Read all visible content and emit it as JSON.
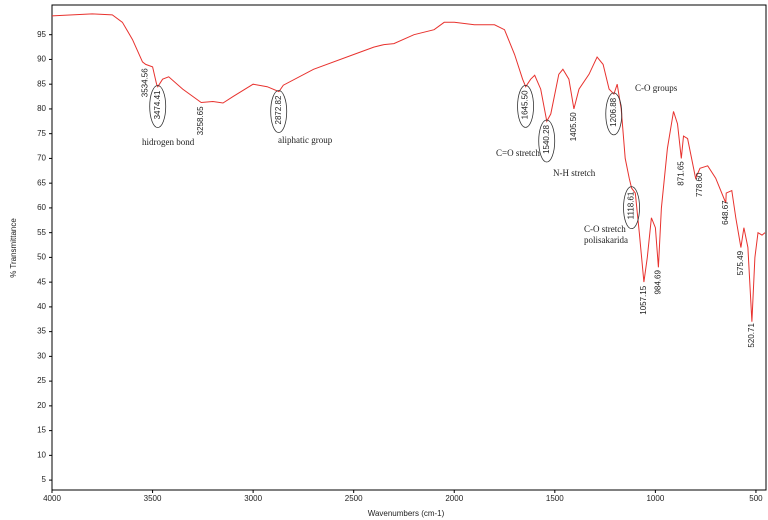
{
  "chart_data": {
    "type": "line",
    "xlabel": "Wavenumbers (cm-1)",
    "ylabel": "% Transmittance",
    "color": "#e8322e",
    "x": [
      4000,
      3800,
      3700,
      3650,
      3600,
      3550,
      3534,
      3500,
      3480,
      3474,
      3450,
      3420,
      3350,
      3258,
      3200,
      3150,
      3100,
      3000,
      2930,
      2872,
      2850,
      2700,
      2500,
      2400,
      2350,
      2300,
      2200,
      2100,
      2050,
      2000,
      1900,
      1800,
      1750,
      1700,
      1660,
      1645,
      1620,
      1600,
      1570,
      1540,
      1520,
      1480,
      1460,
      1430,
      1405,
      1380,
      1330,
      1290,
      1260,
      1230,
      1206,
      1190,
      1170,
      1150,
      1130,
      1118,
      1100,
      1080,
      1057,
      1040,
      1020,
      1000,
      985,
      970,
      940,
      910,
      890,
      871,
      860,
      840,
      800,
      778,
      740,
      700,
      650,
      648,
      620,
      600,
      575,
      560,
      540,
      520,
      505,
      490,
      470,
      455
    ],
    "values": [
      98.8,
      99.2,
      99,
      97.5,
      94,
      89.5,
      89,
      88.5,
      85,
      84.5,
      86,
      86.5,
      84,
      81.3,
      81.5,
      81.2,
      82.5,
      85,
      84.5,
      83.5,
      84.8,
      88,
      91,
      92.5,
      93,
      93.2,
      95,
      96,
      97.5,
      97.5,
      97,
      97,
      96,
      91,
      86,
      84.5,
      86,
      86.8,
      84,
      77.5,
      79,
      87,
      88,
      86,
      80,
      84,
      87,
      90.5,
      89,
      84,
      83,
      85,
      80,
      70,
      66,
      64,
      63,
      55,
      45,
      50,
      58,
      56,
      48,
      60,
      72,
      79.5,
      77,
      70,
      74.5,
      74,
      66,
      68,
      68.5,
      66,
      61,
      63,
      63.5,
      58,
      52,
      56,
      52,
      37,
      50,
      55,
      54.5,
      55
    ],
    "xlim": [
      4000,
      450
    ],
    "ylim": [
      3,
      101
    ],
    "xticks": [
      4000,
      3500,
      3000,
      2500,
      2000,
      1500,
      1000,
      500
    ],
    "yticks": [
      5,
      10,
      15,
      20,
      25,
      30,
      35,
      40,
      45,
      50,
      55,
      60,
      65,
      70,
      75,
      80,
      85,
      90,
      95
    ],
    "grid": false,
    "peaks": [
      {
        "value": 3534.56,
        "label": "3534.56"
      },
      {
        "value": 3474.41,
        "label": "3474.41",
        "circled": true
      },
      {
        "value": 3258.65,
        "label": "3258.65"
      },
      {
        "value": 2872.82,
        "label": "2872.82",
        "circled": true
      },
      {
        "value": 1645.5,
        "label": "1645.50",
        "circled": true
      },
      {
        "value": 1540.28,
        "label": "1540.28",
        "circled": true
      },
      {
        "value": 1405.5,
        "label": "1405.50"
      },
      {
        "value": 1206.88,
        "label": "1206.88",
        "circled": true
      },
      {
        "value": 1118.61,
        "label": "1118.61",
        "circled": true
      },
      {
        "value": 1057.15,
        "label": "1057.15"
      },
      {
        "value": 984.69,
        "label": "984.69"
      },
      {
        "value": 871.65,
        "label": "871.65"
      },
      {
        "value": 778.6,
        "label": "778.60"
      },
      {
        "value": 648.67,
        "label": "648.67"
      },
      {
        "value": 575.49,
        "label": "575.49"
      },
      {
        "value": 520.71,
        "label": "520.71"
      }
    ],
    "annotations": [
      "hidrogen bond",
      "aliphatic group",
      "C=O stretch",
      "N-H stretch",
      "C-O groups",
      "C-O stretch",
      "polisakarida"
    ]
  }
}
